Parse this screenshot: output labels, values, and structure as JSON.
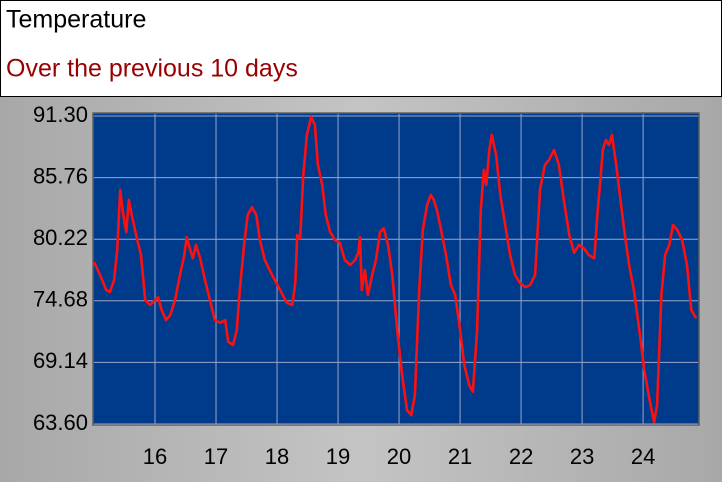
{
  "chart_data": {
    "type": "line",
    "title": "Temperature",
    "subtitle": "Over the previous 10 days",
    "x": [
      15.0,
      15.1,
      15.2,
      15.26,
      15.33,
      15.38,
      15.43,
      15.48,
      15.53,
      15.57,
      15.62,
      15.69,
      15.77,
      15.84,
      15.92,
      16.0,
      16.05,
      16.11,
      16.18,
      16.25,
      16.33,
      16.41,
      16.48,
      16.52,
      16.57,
      16.62,
      16.67,
      16.74,
      16.82,
      16.9,
      16.98,
      17.07,
      17.15,
      17.2,
      17.28,
      17.34,
      17.39,
      17.46,
      17.52,
      17.59,
      17.66,
      17.72,
      17.8,
      17.92,
      18.05,
      18.16,
      18.25,
      18.3,
      18.33,
      18.38,
      18.43,
      18.49,
      18.56,
      18.62,
      18.67,
      18.74,
      18.8,
      18.87,
      18.95,
      19.03,
      19.11,
      19.2,
      19.28,
      19.33,
      19.36,
      19.39,
      19.44,
      19.49,
      19.56,
      19.62,
      19.69,
      19.75,
      19.82,
      19.89,
      19.97,
      20.05,
      20.13,
      20.2,
      20.26,
      20.33,
      20.39,
      20.46,
      20.52,
      20.57,
      20.62,
      20.69,
      20.77,
      20.85,
      20.92,
      21.0,
      21.07,
      21.15,
      21.21,
      21.28,
      21.34,
      21.39,
      21.43,
      21.48,
      21.52,
      21.59,
      21.66,
      21.74,
      21.82,
      21.9,
      21.98,
      22.07,
      22.15,
      22.23,
      22.31,
      22.39,
      22.46,
      22.54,
      22.62,
      22.7,
      22.79,
      22.87,
      22.95,
      23.03,
      23.11,
      23.2,
      23.25,
      23.3,
      23.34,
      23.39,
      23.44,
      23.49,
      23.56,
      23.62,
      23.69,
      23.77,
      23.85,
      23.95,
      24.02,
      24.1,
      24.18,
      24.23,
      24.3,
      24.36,
      24.43,
      24.49,
      24.56,
      24.64,
      24.72,
      24.79,
      24.87
    ],
    "values": [
      78.17,
      77.0,
      75.65,
      75.47,
      76.55,
      79.25,
      84.65,
      82.4,
      80.87,
      83.75,
      82.4,
      80.6,
      78.8,
      74.75,
      74.3,
      74.75,
      75.0,
      73.85,
      72.95,
      73.4,
      74.75,
      77.0,
      78.8,
      80.4,
      79.4,
      78.5,
      79.7,
      78.5,
      76.55,
      74.75,
      72.95,
      72.7,
      72.95,
      71.0,
      70.7,
      72.06,
      75.65,
      79.7,
      82.4,
      83.1,
      82.4,
      80.15,
      78.35,
      77.0,
      75.65,
      74.5,
      74.3,
      76.28,
      80.6,
      80.3,
      86.0,
      89.6,
      91.2,
      90.5,
      86.9,
      85.1,
      82.4,
      80.87,
      80.15,
      79.9,
      78.35,
      77.9,
      78.35,
      79.0,
      80.4,
      75.65,
      77.45,
      75.2,
      77.0,
      78.35,
      80.87,
      81.2,
      79.7,
      77.0,
      72.06,
      68.0,
      64.86,
      64.4,
      66.2,
      75.65,
      81.05,
      83.3,
      84.2,
      83.75,
      82.85,
      81.05,
      78.8,
      76.1,
      75.2,
      72.06,
      68.9,
      67.1,
      66.5,
      72.06,
      82.85,
      86.45,
      85.1,
      88.25,
      89.6,
      87.8,
      84.2,
      81.5,
      78.8,
      77.0,
      76.3,
      75.9,
      76.1,
      77.0,
      84.65,
      86.9,
      87.35,
      88.25,
      86.9,
      83.75,
      80.6,
      79.0,
      79.7,
      79.4,
      78.8,
      78.5,
      82.4,
      85.55,
      88.25,
      89.15,
      88.7,
      89.6,
      86.9,
      84.2,
      81.05,
      77.9,
      75.65,
      71.6,
      68.45,
      65.95,
      63.78,
      65.3,
      75.2,
      78.8,
      79.7,
      81.5,
      81.05,
      80.15,
      77.9,
      73.85,
      73.1
    ],
    "color": "#ff1010",
    "xlim": [
      15,
      24.9
    ],
    "xticks": [
      16,
      17,
      18,
      19,
      20,
      21,
      22,
      23,
      24
    ],
    "ylim": [
      63.6,
      91.3
    ],
    "yticks": [
      {
        "value": 63.6,
        "label": "63.60"
      },
      {
        "value": 69.14,
        "label": "69.14"
      },
      {
        "value": 74.68,
        "label": "74.68"
      },
      {
        "value": 80.22,
        "label": "80.22"
      },
      {
        "value": 85.76,
        "label": "85.76"
      },
      {
        "value": 91.3,
        "label": "91.30"
      }
    ],
    "grid": true
  }
}
